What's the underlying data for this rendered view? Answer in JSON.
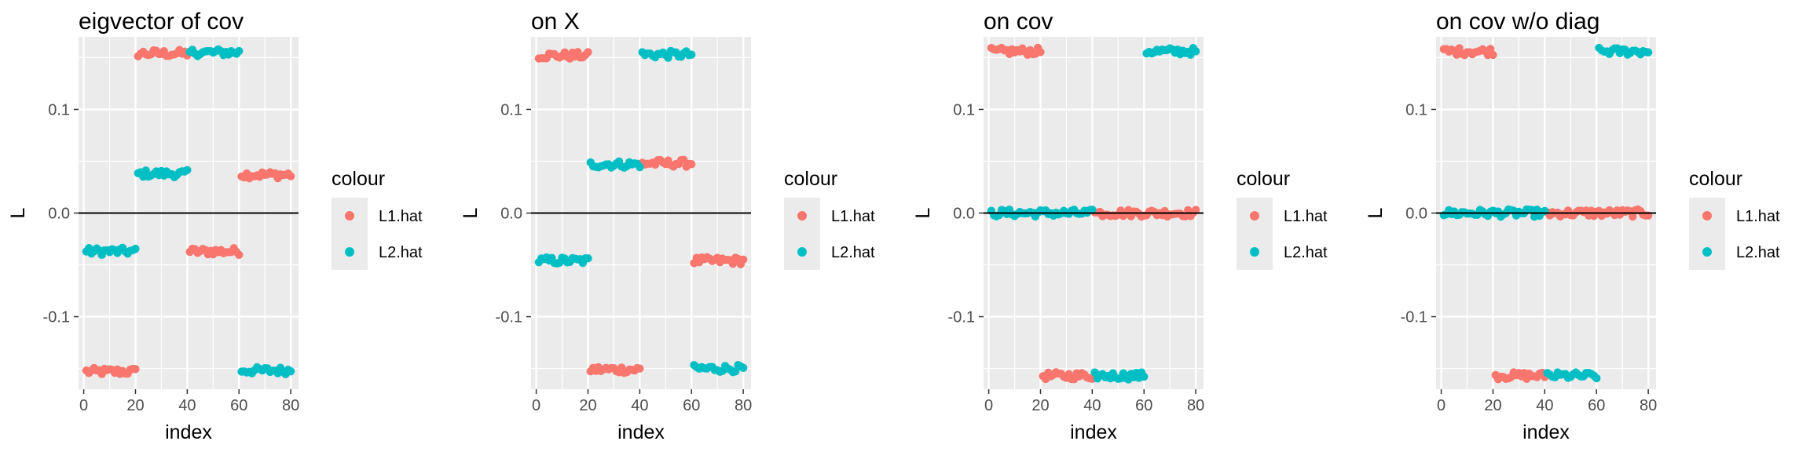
{
  "chart_data": [
    {
      "type": "scatter",
      "title": "eigvector of cov",
      "xlabel": "index",
      "ylabel": "L",
      "xlim": [
        -2,
        83
      ],
      "ylim": [
        -0.17,
        0.17
      ],
      "x_ticks": [
        "0",
        "20",
        "40",
        "60",
        "80"
      ],
      "y_ticks": [
        "-0.1",
        "0.0",
        "0.1"
      ],
      "hline": 0,
      "grid": true,
      "legend": {
        "title": "colour",
        "position": "right",
        "entries": [
          "L1.hat",
          "L2.hat"
        ]
      },
      "series": [
        {
          "name": "L1.hat",
          "color": "#F8766D",
          "segments": [
            {
              "x": [
                1,
                20
              ],
              "y": -0.153
            },
            {
              "x": [
                21,
                40
              ],
              "y": 0.154
            },
            {
              "x": [
                41,
                60
              ],
              "y": -0.037
            },
            {
              "x": [
                61,
                80
              ],
              "y": 0.037
            }
          ]
        },
        {
          "name": "L2.hat",
          "color": "#00BFC4",
          "segments": [
            {
              "x": [
                1,
                20
              ],
              "y": -0.037
            },
            {
              "x": [
                21,
                40
              ],
              "y": 0.038
            },
            {
              "x": [
                41,
                60
              ],
              "y": 0.155
            },
            {
              "x": [
                61,
                80
              ],
              "y": -0.152
            }
          ]
        }
      ]
    },
    {
      "type": "scatter",
      "title": "on X",
      "xlabel": "index",
      "ylabel": "L",
      "xlim": [
        -2,
        83
      ],
      "ylim": [
        -0.17,
        0.17
      ],
      "x_ticks": [
        "0",
        "20",
        "40",
        "60",
        "80"
      ],
      "y_ticks": [
        "-0.1",
        "0.0",
        "0.1"
      ],
      "hline": 0,
      "grid": true,
      "legend": {
        "title": "colour",
        "position": "right",
        "entries": [
          "L1.hat",
          "L2.hat"
        ]
      },
      "series": [
        {
          "name": "L1.hat",
          "color": "#F8766D",
          "segments": [
            {
              "x": [
                1,
                20
              ],
              "y": 0.152
            },
            {
              "x": [
                21,
                40
              ],
              "y": -0.151
            },
            {
              "x": [
                41,
                60
              ],
              "y": 0.048
            },
            {
              "x": [
                61,
                80
              ],
              "y": -0.046
            }
          ]
        },
        {
          "name": "L2.hat",
          "color": "#00BFC4",
          "segments": [
            {
              "x": [
                1,
                20
              ],
              "y": -0.046
            },
            {
              "x": [
                21,
                40
              ],
              "y": 0.047
            },
            {
              "x": [
                41,
                60
              ],
              "y": 0.153
            },
            {
              "x": [
                61,
                80
              ],
              "y": -0.15
            }
          ]
        }
      ]
    },
    {
      "type": "scatter",
      "title": "on cov",
      "xlabel": "index",
      "ylabel": "L",
      "xlim": [
        -2,
        83
      ],
      "ylim": [
        -0.17,
        0.17
      ],
      "x_ticks": [
        "0",
        "20",
        "40",
        "60",
        "80"
      ],
      "y_ticks": [
        "-0.1",
        "0.0",
        "0.1"
      ],
      "hline": 0,
      "grid": true,
      "legend": {
        "title": "colour",
        "position": "right",
        "entries": [
          "L1.hat",
          "L2.hat"
        ]
      },
      "series": [
        {
          "name": "L1.hat",
          "color": "#F8766D",
          "segments": [
            {
              "x": [
                1,
                20
              ],
              "y": 0.156
            },
            {
              "x": [
                21,
                40
              ],
              "y": -0.157
            },
            {
              "x": [
                41,
                60
              ],
              "y": 0.0
            },
            {
              "x": [
                61,
                80
              ],
              "y": 0.0
            }
          ]
        },
        {
          "name": "L2.hat",
          "color": "#00BFC4",
          "segments": [
            {
              "x": [
                1,
                20
              ],
              "y": 0.0
            },
            {
              "x": [
                21,
                40
              ],
              "y": 0.0
            },
            {
              "x": [
                41,
                60
              ],
              "y": -0.157
            },
            {
              "x": [
                61,
                80
              ],
              "y": 0.156
            }
          ]
        }
      ]
    },
    {
      "type": "scatter",
      "title": "on cov w/o diag",
      "xlabel": "index",
      "ylabel": "L",
      "xlim": [
        -2,
        83
      ],
      "ylim": [
        -0.17,
        0.17
      ],
      "x_ticks": [
        "0",
        "20",
        "40",
        "60",
        "80"
      ],
      "y_ticks": [
        "-0.1",
        "0.0",
        "0.1"
      ],
      "hline": 0,
      "grid": true,
      "legend": {
        "title": "colour",
        "position": "right",
        "entries": [
          "L1.hat",
          "L2.hat"
        ]
      },
      "series": [
        {
          "name": "L1.hat",
          "color": "#F8766D",
          "segments": [
            {
              "x": [
                1,
                20
              ],
              "y": 0.156
            },
            {
              "x": [
                21,
                40
              ],
              "y": -0.157
            },
            {
              "x": [
                41,
                60
              ],
              "y": 0.0
            },
            {
              "x": [
                61,
                80
              ],
              "y": 0.0
            }
          ]
        },
        {
          "name": "L2.hat",
          "color": "#00BFC4",
          "segments": [
            {
              "x": [
                1,
                20
              ],
              "y": 0.0
            },
            {
              "x": [
                21,
                40
              ],
              "y": 0.0
            },
            {
              "x": [
                41,
                60
              ],
              "y": -0.157
            },
            {
              "x": [
                61,
                80
              ],
              "y": 0.156
            }
          ]
        }
      ]
    }
  ]
}
